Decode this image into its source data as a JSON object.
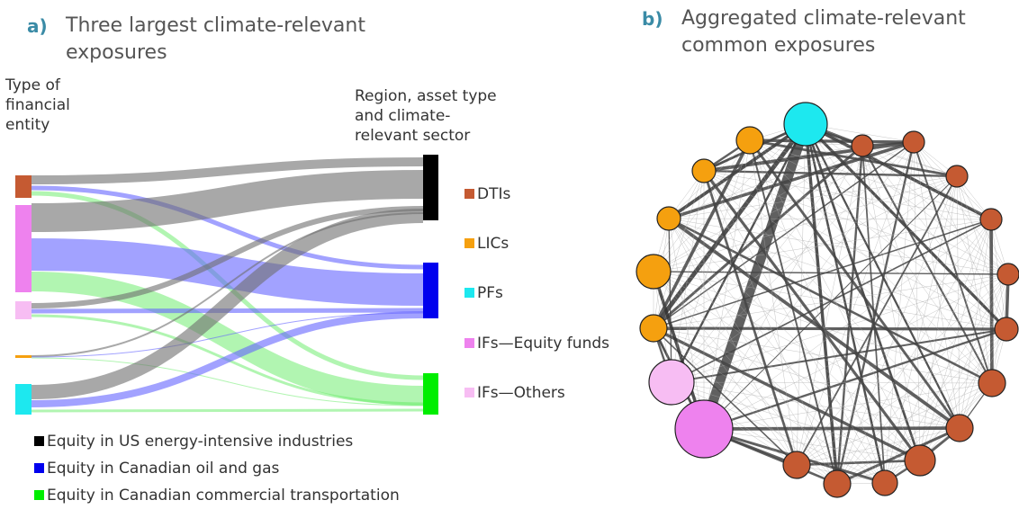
{
  "panel_a": {
    "letter": "a)",
    "title": "Three largest climate-relevant exposures",
    "left_label": "Type of financial entity",
    "right_label": "Region, asset type and climate-relevant sector",
    "targets": [
      {
        "label": "Equity in US energy-intensive industries",
        "color": "#000000"
      },
      {
        "label": "Equity in Canadian oil and gas",
        "color": "#0000ee"
      },
      {
        "label": "Equity in Canadian commercial transportation",
        "color": "#00ee00"
      }
    ]
  },
  "panel_b": {
    "letter": "b)",
    "title": "Aggregated climate-relevant common exposures"
  },
  "legend": [
    {
      "label": "DTIs",
      "color": "#c55a32"
    },
    {
      "label": "LICs",
      "color": "#f5a00f"
    },
    {
      "label": "PFs",
      "color": "#1de8ef"
    },
    {
      "label": "IFs—Equity funds",
      "color": "#ee82ee"
    },
    {
      "label": "IFs—Others",
      "color": "#f7bdf3"
    }
  ]
}
